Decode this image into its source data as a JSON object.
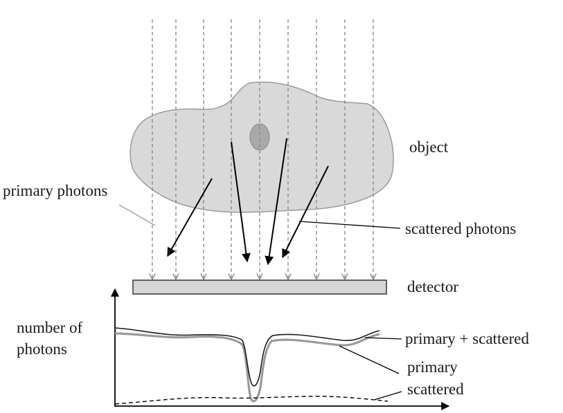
{
  "labels": {
    "object": "object",
    "primary_photons": "primary photons",
    "scattered_photons": "scattered photons",
    "detector": "detector",
    "y_axis_line1": "number of",
    "y_axis_line2": "photons",
    "primary_plus_scattered": "primary + scattered",
    "primary": "primary",
    "scattered": "scattered"
  },
  "colors": {
    "object_fill": "#d9d9d9",
    "object_stroke": "#9a9a9a",
    "inclusion_fill": "#a9a9a9",
    "ray": "#8c8c8c",
    "arrow": "#000000",
    "detector_fill": "#d6d6d6",
    "primary_curve": "#9a9a9a",
    "total_curve": "#1a1a1a"
  }
}
